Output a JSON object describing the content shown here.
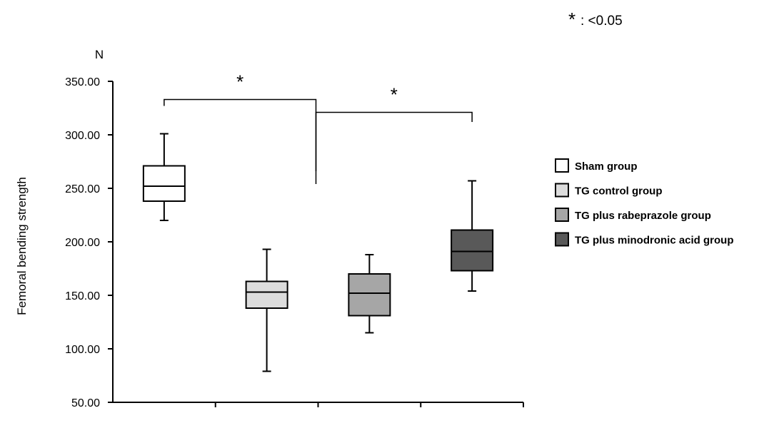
{
  "chart_data": {
    "type": "boxplot",
    "ylabel": "Femoral bending strength",
    "yunit": "N",
    "ylim": [
      50,
      350
    ],
    "yticks": [
      50,
      100,
      150,
      200,
      250,
      300,
      350
    ],
    "ytick_labels": [
      "50.00",
      "100.00",
      "150.00",
      "200.00",
      "250.00",
      "300.00",
      "350.00"
    ],
    "grid": false,
    "legend_position": "right",
    "significance_note": {
      "symbol": "*",
      "text": ": <0.05"
    },
    "groups": [
      {
        "name": "Sham group",
        "color": "#ffffff",
        "min": 220,
        "q1": 238,
        "median": 252,
        "q3": 271,
        "max": 301
      },
      {
        "name": "TG control group",
        "color": "#dcdcdc",
        "min": 79,
        "q1": 138,
        "median": 153,
        "q3": 163,
        "max": 193
      },
      {
        "name": "TG plus rabeprazole group",
        "color": "#a6a6a6",
        "min": 115,
        "q1": 131,
        "median": 152,
        "q3": 170,
        "max": 188
      },
      {
        "name": "TG plus minodronic acid group",
        "color": "#595959",
        "min": 154,
        "q1": 173,
        "median": 191,
        "q3": 211,
        "max": 257
      }
    ],
    "significance": [
      {
        "from": 0,
        "to": 1,
        "label": "*",
        "y_top": 333,
        "y_left": 327,
        "y_right": 266
      },
      {
        "from": 1,
        "to": 3,
        "label": "*",
        "y_top": 321,
        "y_left": 254,
        "y_right": 312
      }
    ]
  }
}
